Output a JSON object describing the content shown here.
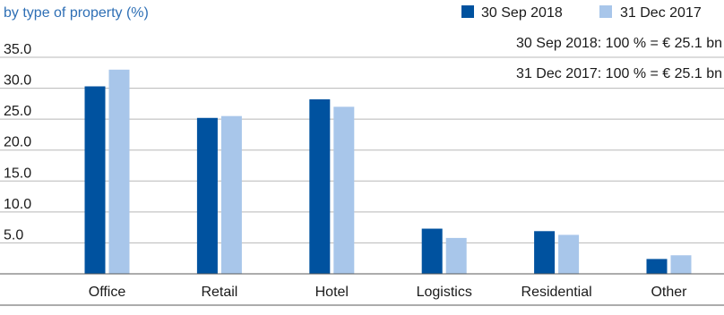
{
  "chart_data": {
    "type": "bar",
    "subtitle": "by type of property (%)",
    "categories": [
      "Office",
      "Retail",
      "Hotel",
      "Logistics",
      "Residential",
      "Other"
    ],
    "series": [
      {
        "name": "30 Sep 2018",
        "color": "#00529f",
        "values": [
          30.3,
          25.2,
          28.2,
          7.3,
          6.9,
          2.4
        ]
      },
      {
        "name": "31 Dec 2017",
        "color": "#a8c6ea",
        "values": [
          33.0,
          25.5,
          27.0,
          5.8,
          6.3,
          3.0
        ]
      }
    ],
    "notes": [
      "30 Sep 2018: 100 % = € 25.1 bn",
      "31 Dec 2017: 100 % = € 25.1 bn"
    ],
    "yticks": [
      "35.0",
      "30.0",
      "25.0",
      "20.0",
      "15.0",
      "10.0",
      "5.0"
    ],
    "ylim": [
      0,
      35
    ],
    "grid": true,
    "legend": "top-right"
  }
}
